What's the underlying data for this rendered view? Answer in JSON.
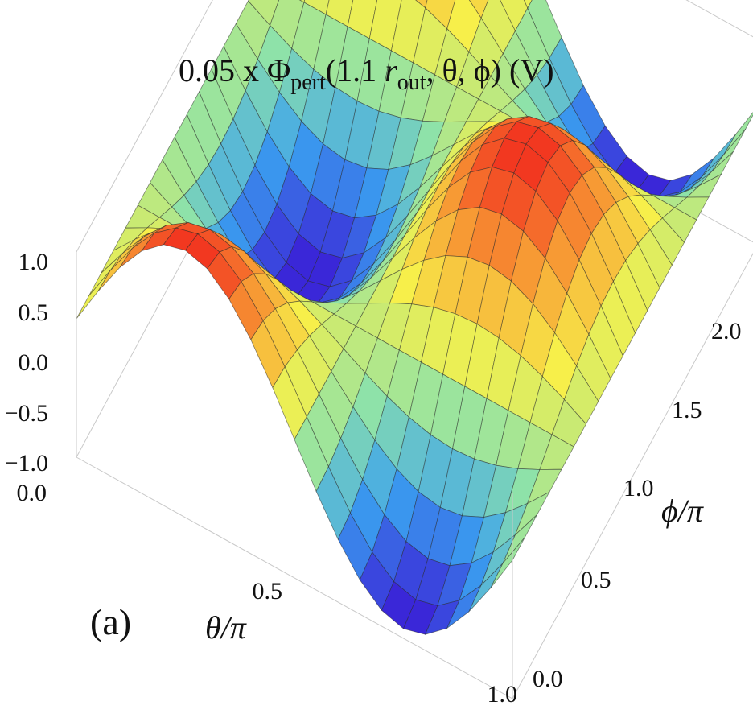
{
  "chart_data": {
    "type": "surface3d",
    "title": {
      "prefix": "0.05 x Φ",
      "sub1": "pert",
      "mid": "(1.1 ",
      "r": "r",
      "sub2": "out",
      "suffix": ", θ, ϕ) (V)"
    },
    "panel_label": "(a)",
    "x_axis": {
      "label": "θ/π",
      "ticks": [
        "0.0",
        "0.5",
        "1.0"
      ],
      "range": [
        0,
        1
      ]
    },
    "y_axis": {
      "label": "ϕ/π",
      "ticks": [
        "0.0",
        "0.5",
        "1.0",
        "1.5",
        "2.0"
      ],
      "range": [
        0,
        2
      ]
    },
    "z_axis": {
      "ticks": [
        "1.0",
        "0.5",
        "0.0",
        "−0.5",
        "−1.0"
      ],
      "range": [
        -1,
        1
      ]
    },
    "surface": "z = sin(2θ)·cos(ϕ)",
    "grid_divisions": 20,
    "colormap": [
      "#3a1fd6",
      "#3aa0f0",
      "#8fe3a8",
      "#f7f04a",
      "#f7a236",
      "#f2311f"
    ]
  }
}
